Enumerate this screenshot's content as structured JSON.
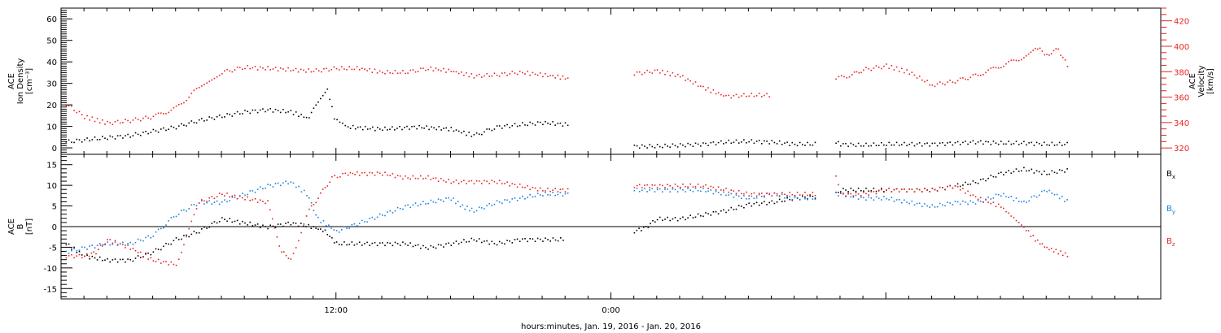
{
  "figure": {
    "xlabel": "hours:minutes, Jan. 19, 2016 - Jan. 20, 2016",
    "x_ticks": [
      "12:00",
      "0:00"
    ]
  },
  "colors": {
    "black": "#000000",
    "blue": "#1a7fe0",
    "red": "#e8231f"
  },
  "chart_data": [
    {
      "type": "scatter",
      "panel": "plasma",
      "x_unit": "hours since 2016-01-19 00:00",
      "xlim": [
        0,
        48
      ],
      "grid": false,
      "left_axis": {
        "label_lines": [
          "ACE",
          "Ion Density",
          "[cm⁻³]"
        ],
        "ylim": [
          -3,
          65
        ],
        "ticks": [
          0,
          10,
          20,
          30,
          40,
          50,
          60
        ]
      },
      "right_axis": {
        "label_lines": [
          "ACE",
          "Velocity",
          "[km/s]"
        ],
        "ylim": [
          315,
          430
        ],
        "ticks": [
          320,
          340,
          360,
          380,
          400,
          420
        ],
        "color": "#e8231f"
      },
      "series": [
        {
          "name": "",
          "axis": "left",
          "color": "#000000",
          "segments": [
            [
              [
                0.2,
                3
              ],
              [
                1,
                4
              ],
              [
                2,
                5
              ],
              [
                3,
                6
              ],
              [
                4,
                8
              ],
              [
                5,
                10
              ],
              [
                6,
                13
              ],
              [
                7,
                15
              ],
              [
                8,
                17
              ],
              [
                9,
                18
              ],
              [
                10,
                17
              ],
              [
                10.8,
                14
              ],
              [
                11.3,
                24
              ],
              [
                11.6,
                28
              ],
              [
                11.9,
                14
              ],
              [
                12.5,
                10
              ],
              [
                14,
                9
              ],
              [
                15.5,
                10
              ],
              [
                17,
                9
              ],
              [
                18,
                6
              ],
              [
                19,
                10
              ],
              [
                20,
                11
              ],
              [
                21,
                12
              ],
              [
                22.2,
                11
              ]
            ],
            [
              [
                25,
                1
              ],
              [
                26,
                1
              ],
              [
                27,
                1.5
              ],
              [
                28,
                2
              ],
              [
                29,
                3
              ],
              [
                30,
                3.3
              ],
              [
                31,
                3
              ],
              [
                32,
                2
              ],
              [
                33,
                2
              ]
            ],
            [
              [
                33.8,
                3
              ],
              [
                34,
                2
              ],
              [
                35,
                1.5
              ],
              [
                36,
                2
              ],
              [
                37,
                2
              ],
              [
                38,
                2
              ],
              [
                39,
                2.5
              ],
              [
                40,
                3
              ],
              [
                41,
                2.5
              ],
              [
                42,
                2.5
              ],
              [
                43,
                2
              ],
              [
                44,
                2
              ]
            ]
          ]
        },
        {
          "name": "",
          "axis": "right",
          "color": "#e8231f",
          "segments": [
            [
              [
                0.2,
                355
              ],
              [
                1,
                345
              ],
              [
                2,
                340
              ],
              [
                3,
                342
              ],
              [
                4,
                345
              ],
              [
                5,
                352
              ],
              [
                6,
                368
              ],
              [
                7,
                380
              ],
              [
                8,
                384
              ],
              [
                9,
                383
              ],
              [
                10,
                382
              ],
              [
                11,
                381
              ],
              [
                12,
                383
              ],
              [
                13,
                383
              ],
              [
                14,
                380
              ],
              [
                15,
                380
              ],
              [
                16,
                383
              ],
              [
                17,
                381
              ],
              [
                18,
                377
              ],
              [
                19,
                378
              ],
              [
                20,
                380
              ],
              [
                21,
                378
              ],
              [
                22.2,
                375
              ]
            ],
            [
              [
                25,
                379
              ],
              [
                26,
                381
              ],
              [
                27,
                377
              ],
              [
                28,
                368
              ],
              [
                29,
                361
              ],
              [
                30,
                362
              ],
              [
                31,
                362
              ]
            ],
            [
              [
                33.8,
                375
              ],
              [
                34.5,
                378
              ],
              [
                35,
                382
              ],
              [
                36,
                385
              ],
              [
                37,
                380
              ],
              [
                38,
                370
              ],
              [
                39,
                373
              ],
              [
                40,
                378
              ],
              [
                41,
                385
              ],
              [
                42,
                392
              ],
              [
                42.5,
                400
              ],
              [
                43,
                394
              ],
              [
                43.5,
                398
              ],
              [
                44,
                382
              ]
            ]
          ]
        }
      ]
    },
    {
      "type": "scatter",
      "panel": "magnetic-field",
      "x_unit": "hours since 2016-01-19 00:00",
      "xlim": [
        0,
        48
      ],
      "grid": false,
      "zero_line": true,
      "left_axis": {
        "label_lines": [
          "ACE",
          "B",
          "[nT]"
        ],
        "ylim": [
          -17.5,
          17.5
        ],
        "ticks": [
          -15,
          -10,
          -5,
          0,
          5,
          10,
          15
        ]
      },
      "legend": {
        "placement": "right",
        "entries": [
          {
            "label": "B",
            "sub": "x",
            "color": "#000000"
          },
          {
            "label": "B",
            "sub": "y",
            "color": "#1a7fe0"
          },
          {
            "label": "B",
            "sub": "z",
            "color": "#e8231f"
          }
        ]
      },
      "series": [
        {
          "name": "Bx",
          "color": "#000000",
          "segments": [
            [
              [
                0.2,
                -4
              ],
              [
                1,
                -7
              ],
              [
                2,
                -8
              ],
              [
                3,
                -8
              ],
              [
                4,
                -6
              ],
              [
                5,
                -3
              ],
              [
                6,
                -1
              ],
              [
                7,
                2
              ],
              [
                8,
                1
              ],
              [
                9,
                0
              ],
              [
                10,
                1
              ],
              [
                11,
                0
              ],
              [
                11.5,
                -1
              ],
              [
                12,
                -4
              ],
              [
                13,
                -4
              ],
              [
                14,
                -4
              ],
              [
                15,
                -4
              ],
              [
                16,
                -5
              ],
              [
                17,
                -4
              ],
              [
                18,
                -3
              ],
              [
                19,
                -4
              ],
              [
                20,
                -3
              ],
              [
                21,
                -3
              ],
              [
                22,
                -3
              ]
            ],
            [
              [
                25,
                -1
              ],
              [
                25.5,
                0
              ],
              [
                26,
                2
              ],
              [
                27,
                2
              ],
              [
                28,
                3
              ],
              [
                29,
                4
              ],
              [
                30,
                5.5
              ],
              [
                31,
                6
              ],
              [
                32,
                7
              ],
              [
                33,
                7.5
              ]
            ],
            [
              [
                33.8,
                8
              ],
              [
                34,
                9
              ],
              [
                35,
                9
              ],
              [
                36,
                9
              ],
              [
                37,
                9
              ],
              [
                38,
                9
              ],
              [
                39,
                10
              ],
              [
                40,
                11
              ],
              [
                41,
                13
              ],
              [
                42,
                14
              ],
              [
                43,
                13
              ],
              [
                44,
                14
              ]
            ]
          ]
        },
        {
          "name": "By",
          "color": "#1a7fe0",
          "segments": [
            [
              [
                0.2,
                -6
              ],
              [
                1,
                -5
              ],
              [
                2,
                -4
              ],
              [
                3,
                -4
              ],
              [
                4,
                -2
              ],
              [
                5,
                3
              ],
              [
                6,
                6
              ],
              [
                7,
                6
              ],
              [
                8,
                8
              ],
              [
                9,
                10
              ],
              [
                10,
                11
              ],
              [
                10.7,
                8
              ],
              [
                11.2,
                2
              ],
              [
                12,
                -1
              ],
              [
                13,
                1
              ],
              [
                14,
                3
              ],
              [
                15,
                5
              ],
              [
                16,
                6
              ],
              [
                17,
                7
              ],
              [
                17.5,
                5
              ],
              [
                18,
                4
              ],
              [
                19,
                6
              ],
              [
                20,
                7
              ],
              [
                21,
                8
              ],
              [
                22.2,
                8
              ]
            ],
            [
              [
                25,
                9
              ],
              [
                26,
                9
              ],
              [
                27,
                9
              ],
              [
                28,
                9
              ],
              [
                29,
                8
              ],
              [
                30,
                7
              ],
              [
                31,
                8
              ],
              [
                32,
                7
              ],
              [
                33,
                7
              ]
            ],
            [
              [
                33.8,
                8
              ],
              [
                34,
                8
              ],
              [
                35,
                7
              ],
              [
                36,
                7
              ],
              [
                37,
                6
              ],
              [
                38,
                5
              ],
              [
                39,
                6
              ],
              [
                40,
                6
              ],
              [
                41,
                8
              ],
              [
                42,
                6
              ],
              [
                43,
                9
              ],
              [
                44,
                6
              ]
            ]
          ]
        },
        {
          "name": "Bz",
          "color": "#e8231f",
          "segments": [
            [
              [
                0.2,
                -7
              ],
              [
                1,
                -7
              ],
              [
                1.5,
                -6
              ],
              [
                2,
                -3
              ],
              [
                3,
                -5
              ],
              [
                4,
                -8
              ],
              [
                5,
                -9
              ],
              [
                6,
                6
              ],
              [
                7,
                8
              ],
              [
                8,
                7
              ],
              [
                9,
                6
              ],
              [
                9.5,
                -5
              ],
              [
                10,
                -8
              ],
              [
                10.8,
                4
              ],
              [
                11.3,
                8
              ],
              [
                11.8,
                12
              ],
              [
                12.5,
                13
              ],
              [
                13,
                13
              ],
              [
                14,
                13
              ],
              [
                15,
                12
              ],
              [
                16,
                12
              ],
              [
                17,
                11
              ],
              [
                18,
                11
              ],
              [
                19,
                11
              ],
              [
                20,
                10
              ],
              [
                21,
                9
              ],
              [
                22.2,
                9
              ]
            ],
            [
              [
                25,
                10
              ],
              [
                26,
                10
              ],
              [
                27,
                10
              ],
              [
                28,
                10
              ],
              [
                29,
                9
              ],
              [
                30,
                8
              ],
              [
                31,
                8
              ],
              [
                32,
                8
              ],
              [
                33,
                8
              ]
            ],
            [
              [
                33.8,
                12
              ],
              [
                34,
                8
              ],
              [
                35,
                8
              ],
              [
                36,
                9
              ],
              [
                37,
                9
              ],
              [
                38,
                9
              ],
              [
                39,
                10
              ],
              [
                40,
                7
              ],
              [
                41,
                5
              ],
              [
                42,
                0
              ],
              [
                42.5,
                -3
              ],
              [
                43,
                -5
              ],
              [
                43.5,
                -6
              ],
              [
                44,
                -7
              ]
            ]
          ]
        }
      ]
    }
  ]
}
